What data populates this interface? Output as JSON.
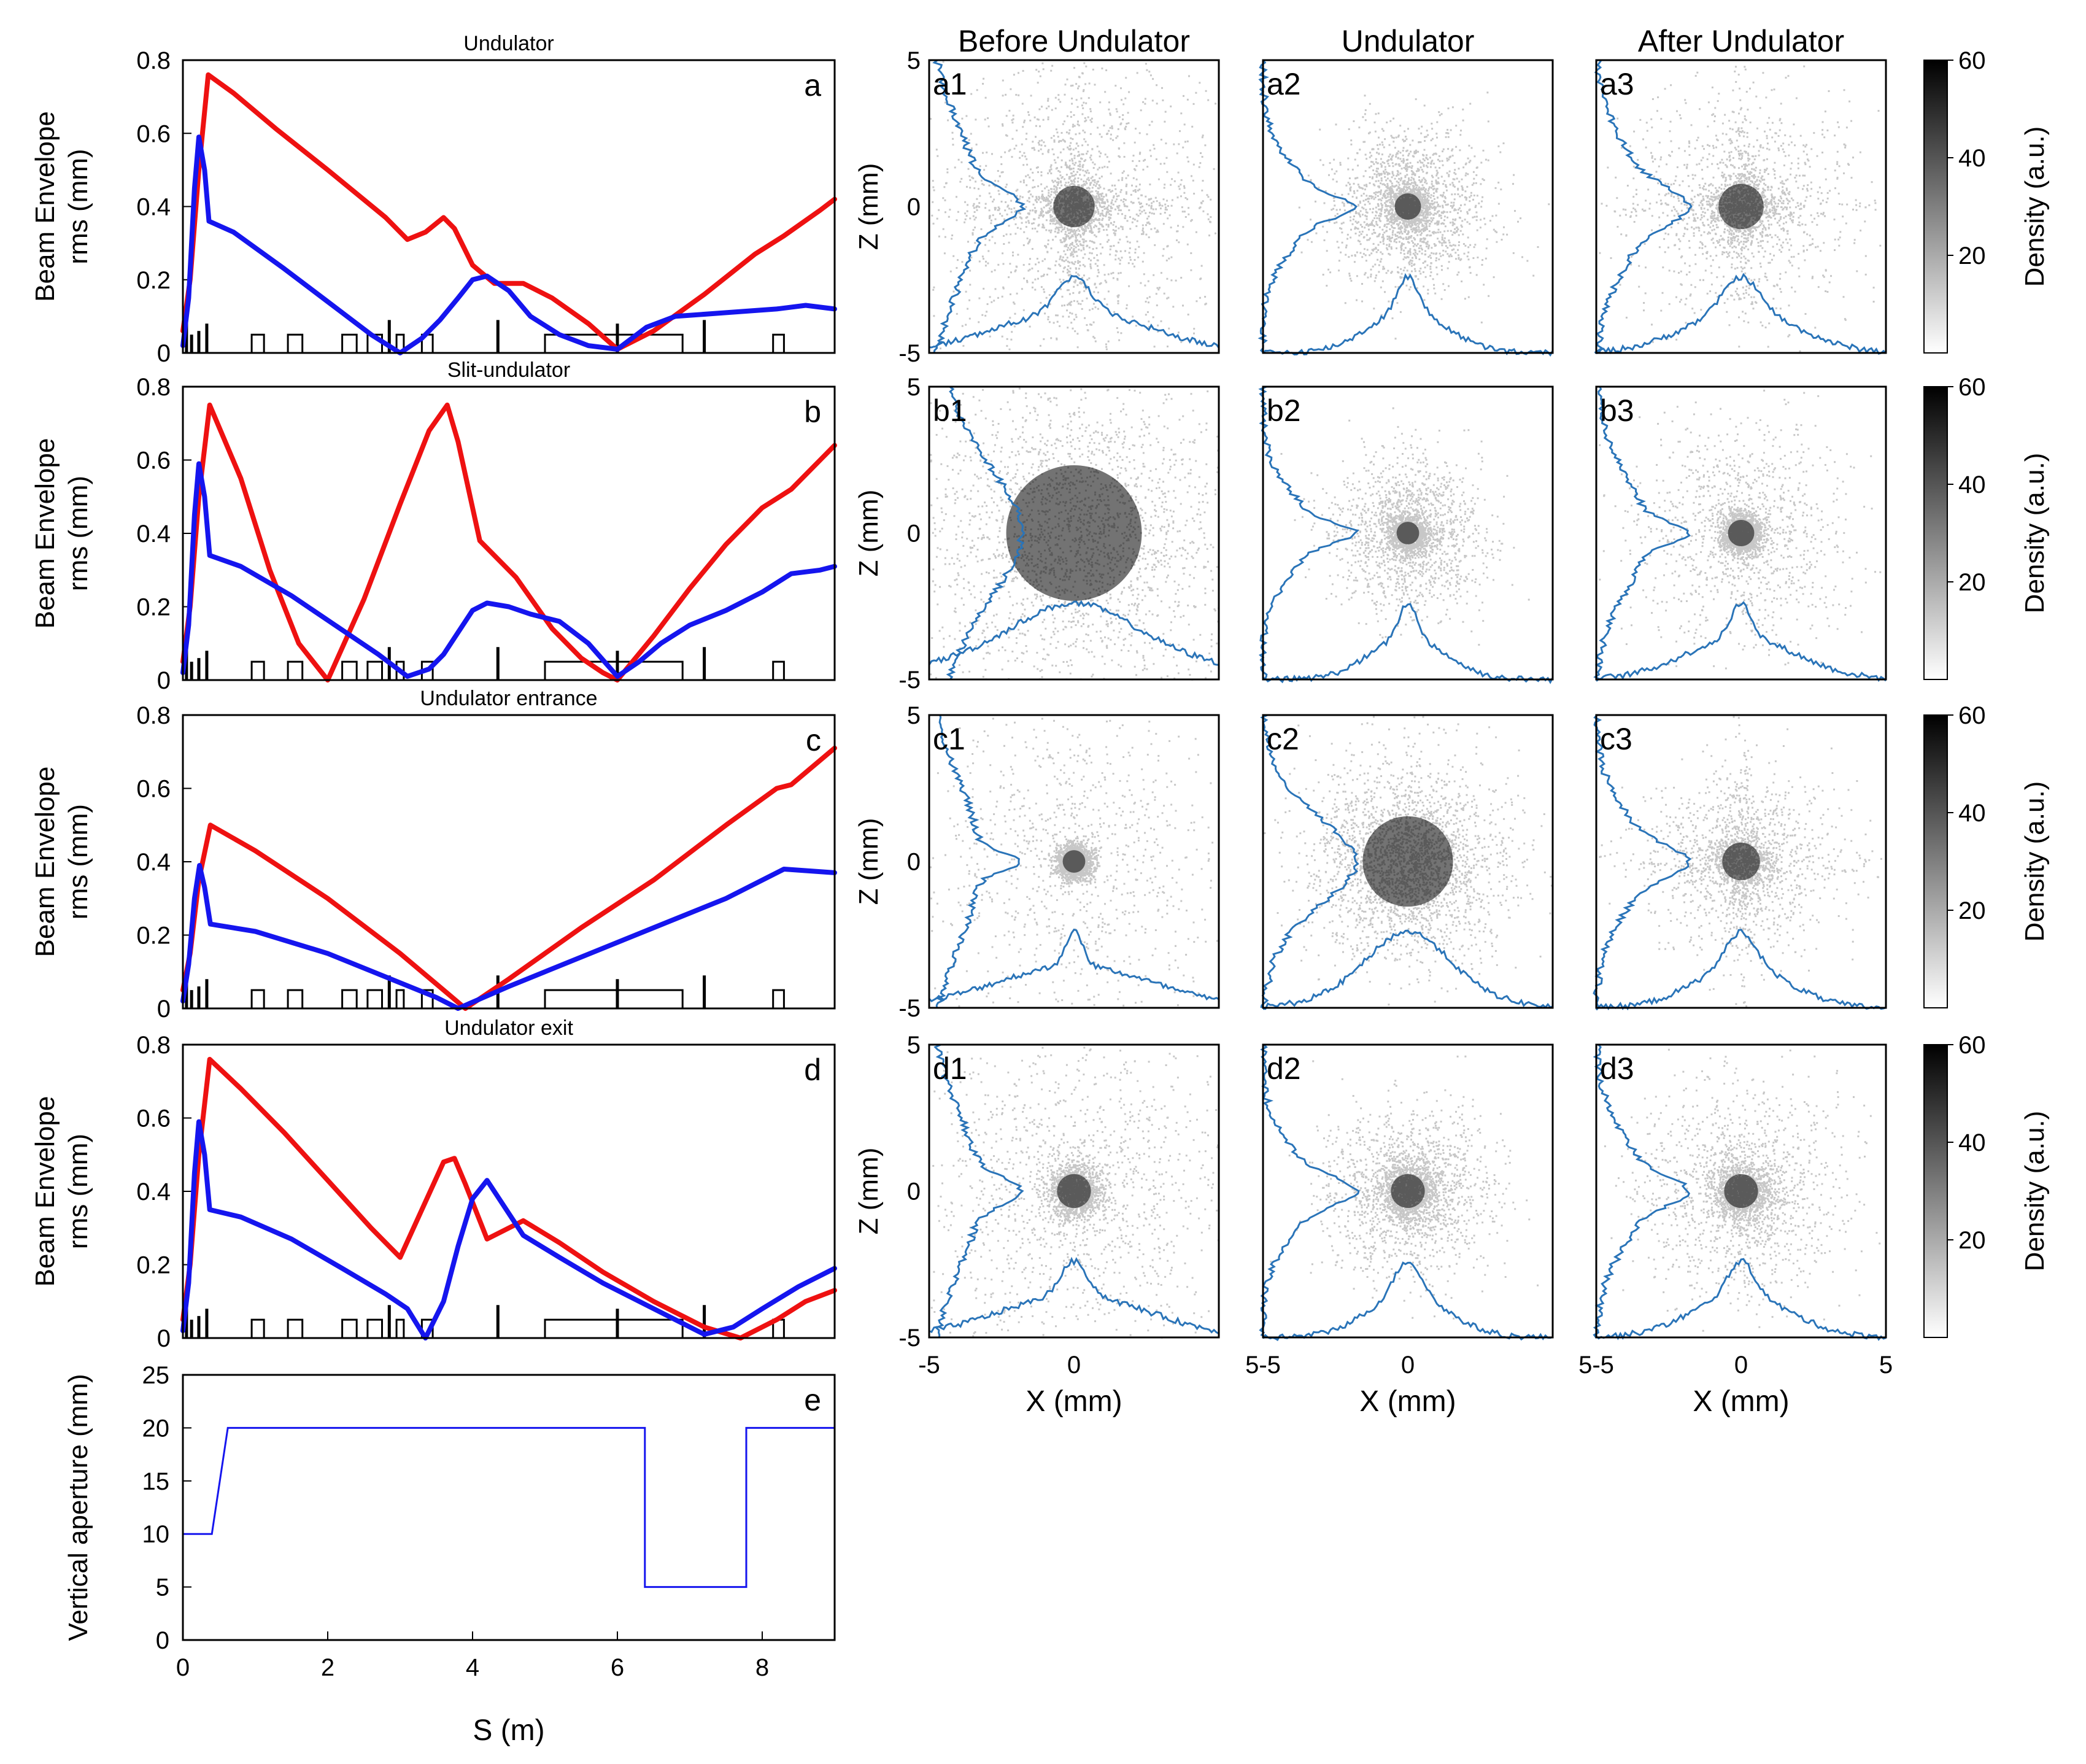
{
  "column_titles": [
    "Before Undulator",
    "Undulator",
    "After Undulator"
  ],
  "colorbar_label": "Density (a.u.)",
  "colorbar_ticks": [
    "20",
    "40",
    "60"
  ],
  "density_axes": {
    "xlabel": "X (mm)",
    "ylabel": "Z (mm)",
    "xticks": [
      "-5",
      "0",
      "5"
    ],
    "yticks": [
      "-5",
      "0",
      "5"
    ],
    "xticks_joined": [
      "-5",
      "0",
      "5-5",
      "0",
      "5-5",
      "0",
      "5"
    ]
  },
  "envelope_axes": {
    "ylabel_line1": "Beam Envelope",
    "ylabel_line2": "rms (mm)",
    "yticks": [
      "0",
      "0.2",
      "0.4",
      "0.6",
      "0.8"
    ]
  },
  "chart_data": [
    {
      "id": "a",
      "letter": "a",
      "type": "line",
      "title": "Undulator",
      "xlim": [
        0,
        9
      ],
      "ylim": [
        0,
        0.8
      ],
      "series": [
        {
          "name": "red",
          "color": "#ee1111",
          "x": [
            0,
            0.1,
            0.22,
            0.35,
            0.7,
            1.3,
            2,
            2.8,
            3.1,
            3.35,
            3.6,
            3.75,
            4.0,
            4.3,
            4.7,
            5.1,
            5.6,
            6.0,
            6.5,
            7.2,
            7.9,
            8.3,
            8.8,
            9.0
          ],
          "y": [
            0.06,
            0.2,
            0.5,
            0.76,
            0.71,
            0.61,
            0.5,
            0.37,
            0.31,
            0.33,
            0.37,
            0.34,
            0.24,
            0.19,
            0.19,
            0.15,
            0.08,
            0.01,
            0.06,
            0.16,
            0.27,
            0.32,
            0.39,
            0.42
          ]
        },
        {
          "name": "blue",
          "color": "#1515ee",
          "x": [
            0,
            0.08,
            0.16,
            0.22,
            0.3,
            0.36,
            0.7,
            1.4,
            2.0,
            2.6,
            3.0,
            3.3,
            3.55,
            3.8,
            4.0,
            4.2,
            4.5,
            4.8,
            5.2,
            5.6,
            6.0,
            6.4,
            6.8,
            7.5,
            8.2,
            8.6,
            9.0
          ],
          "y": [
            0.02,
            0.15,
            0.45,
            0.59,
            0.5,
            0.36,
            0.33,
            0.23,
            0.14,
            0.05,
            0.0,
            0.04,
            0.09,
            0.15,
            0.2,
            0.21,
            0.17,
            0.1,
            0.05,
            0.02,
            0.01,
            0.07,
            0.1,
            0.11,
            0.12,
            0.13,
            0.12
          ]
        }
      ]
    },
    {
      "id": "b",
      "letter": "b",
      "type": "line",
      "title": "Slit-undulator",
      "xlim": [
        0,
        9
      ],
      "ylim": [
        0,
        0.8
      ],
      "series": [
        {
          "name": "red",
          "color": "#ee1111",
          "x": [
            0,
            0.1,
            0.22,
            0.37,
            0.8,
            1.2,
            1.6,
            2.0,
            2.5,
            3.0,
            3.4,
            3.65,
            3.8,
            4.1,
            4.6,
            5.1,
            5.5,
            5.8,
            6.0,
            6.5,
            7.0,
            7.5,
            8.0,
            8.4,
            8.8,
            9.0
          ],
          "y": [
            0.05,
            0.2,
            0.5,
            0.75,
            0.55,
            0.3,
            0.1,
            0.0,
            0.22,
            0.48,
            0.68,
            0.75,
            0.65,
            0.38,
            0.28,
            0.14,
            0.06,
            0.02,
            0.0,
            0.12,
            0.25,
            0.37,
            0.47,
            0.52,
            0.6,
            0.64
          ]
        },
        {
          "name": "blue",
          "color": "#1515ee",
          "x": [
            0,
            0.08,
            0.16,
            0.22,
            0.3,
            0.37,
            0.8,
            1.5,
            2.1,
            2.7,
            3.1,
            3.4,
            3.6,
            3.8,
            4.0,
            4.2,
            4.5,
            4.8,
            5.2,
            5.6,
            6.0,
            6.3,
            6.6,
            7.0,
            7.5,
            8.0,
            8.4,
            8.8,
            9.0
          ],
          "y": [
            0.02,
            0.15,
            0.45,
            0.59,
            0.5,
            0.34,
            0.31,
            0.23,
            0.15,
            0.07,
            0.01,
            0.03,
            0.07,
            0.13,
            0.19,
            0.21,
            0.2,
            0.18,
            0.16,
            0.1,
            0.01,
            0.05,
            0.1,
            0.15,
            0.19,
            0.24,
            0.29,
            0.3,
            0.31
          ]
        }
      ]
    },
    {
      "id": "c",
      "letter": "c",
      "type": "line",
      "title": "Undulator entrance",
      "xlim": [
        0,
        9
      ],
      "ylim": [
        0,
        0.8
      ],
      "series": [
        {
          "name": "red",
          "color": "#ee1111",
          "x": [
            0,
            0.1,
            0.22,
            0.38,
            1.0,
            2.0,
            3.0,
            3.6,
            3.9,
            4.5,
            5.5,
            6.5,
            7.5,
            8.2,
            8.4,
            9.0
          ],
          "y": [
            0.05,
            0.15,
            0.35,
            0.5,
            0.43,
            0.3,
            0.15,
            0.05,
            0.0,
            0.08,
            0.22,
            0.35,
            0.5,
            0.6,
            0.61,
            0.71
          ]
        },
        {
          "name": "blue",
          "color": "#1515ee",
          "x": [
            0,
            0.08,
            0.16,
            0.23,
            0.3,
            0.38,
            1.0,
            2.0,
            3.0,
            3.5,
            3.8,
            4.5,
            5.5,
            6.5,
            7.5,
            8.3,
            9.0
          ],
          "y": [
            0.02,
            0.12,
            0.3,
            0.39,
            0.33,
            0.23,
            0.21,
            0.15,
            0.07,
            0.03,
            0.0,
            0.06,
            0.14,
            0.22,
            0.3,
            0.38,
            0.37
          ]
        }
      ]
    },
    {
      "id": "d",
      "letter": "d",
      "type": "line",
      "title": "Undulator exit",
      "xlim": [
        0,
        9
      ],
      "ylim": [
        0,
        0.8
      ],
      "series": [
        {
          "name": "red",
          "color": "#ee1111",
          "x": [
            0,
            0.1,
            0.22,
            0.37,
            0.8,
            1.4,
            2.0,
            2.6,
            3.0,
            3.3,
            3.6,
            3.75,
            3.9,
            4.2,
            4.7,
            5.2,
            5.8,
            6.5,
            7.2,
            7.7,
            8.2,
            8.6,
            9.0
          ],
          "y": [
            0.05,
            0.2,
            0.5,
            0.76,
            0.68,
            0.56,
            0.43,
            0.3,
            0.22,
            0.35,
            0.48,
            0.49,
            0.42,
            0.27,
            0.32,
            0.26,
            0.18,
            0.1,
            0.03,
            0.0,
            0.05,
            0.1,
            0.13
          ]
        },
        {
          "name": "blue",
          "color": "#1515ee",
          "x": [
            0,
            0.08,
            0.16,
            0.22,
            0.3,
            0.37,
            0.8,
            1.5,
            2.2,
            2.8,
            3.1,
            3.35,
            3.6,
            3.8,
            4.0,
            4.2,
            4.4,
            4.7,
            5.2,
            5.8,
            6.5,
            7.2,
            7.6,
            8.0,
            8.5,
            9.0
          ],
          "y": [
            0.02,
            0.15,
            0.45,
            0.59,
            0.5,
            0.35,
            0.33,
            0.27,
            0.19,
            0.12,
            0.08,
            0.0,
            0.1,
            0.25,
            0.38,
            0.43,
            0.37,
            0.28,
            0.22,
            0.15,
            0.08,
            0.01,
            0.03,
            0.08,
            0.14,
            0.19
          ]
        }
      ]
    },
    {
      "id": "e",
      "letter": "e",
      "type": "line",
      "xlabel": "S (m)",
      "ylabel": "Vertical aperture (mm)",
      "xlim": [
        0,
        9
      ],
      "ylim": [
        0,
        25
      ],
      "xticks": [
        "0",
        "2",
        "4",
        "6",
        "8"
      ],
      "yticks": [
        "0",
        "5",
        "10",
        "15",
        "20",
        "25"
      ],
      "series": [
        {
          "name": "aperture",
          "color": "#1515ee",
          "x": [
            0,
            0.4,
            0.62,
            6.38,
            6.38,
            7.78,
            7.78,
            9.0
          ],
          "y": [
            10,
            10,
            20,
            20,
            5,
            5,
            20,
            20
          ]
        }
      ]
    },
    {
      "type": "heatmap",
      "panels": [
        {
          "label": "a1",
          "row": 0,
          "col": 0,
          "core_sigma": 0.55,
          "halo_sigma": 2.6,
          "halo_weight": 0.55,
          "cross": true
        },
        {
          "label": "a2",
          "row": 0,
          "col": 1,
          "core_sigma": 0.35,
          "halo_sigma": 1.35,
          "halo_weight": 0.6,
          "cross": false
        },
        {
          "label": "a3",
          "row": 0,
          "col": 2,
          "core_sigma": 0.6,
          "halo_sigma": 1.9,
          "halo_weight": 0.45,
          "cross": true
        },
        {
          "label": "b1",
          "row": 1,
          "col": 0,
          "core_sigma": 1.8,
          "halo_sigma": 3.6,
          "halo_weight": 0.7,
          "cross": false
        },
        {
          "label": "b2",
          "row": 1,
          "col": 1,
          "core_sigma": 0.3,
          "halo_sigma": 1.3,
          "halo_weight": 0.55,
          "cross": false
        },
        {
          "label": "b3",
          "row": 1,
          "col": 2,
          "core_sigma": 0.35,
          "halo_sigma": 1.9,
          "halo_weight": 0.4,
          "cross": false
        },
        {
          "label": "c1",
          "row": 2,
          "col": 0,
          "core_sigma": 0.3,
          "halo_sigma": 2.7,
          "halo_weight": 0.35,
          "cross": false
        },
        {
          "label": "c2",
          "row": 2,
          "col": 1,
          "core_sigma": 1.2,
          "halo_sigma": 1.9,
          "halo_weight": 0.5,
          "cross": false
        },
        {
          "label": "c3",
          "row": 2,
          "col": 2,
          "core_sigma": 0.5,
          "halo_sigma": 1.6,
          "halo_weight": 0.5,
          "cross": true
        },
        {
          "label": "d1",
          "row": 3,
          "col": 0,
          "core_sigma": 0.45,
          "halo_sigma": 2.6,
          "halo_weight": 0.45,
          "cross": false
        },
        {
          "label": "d2",
          "row": 3,
          "col": 1,
          "core_sigma": 0.45,
          "halo_sigma": 1.4,
          "halo_weight": 0.55,
          "cross": false
        },
        {
          "label": "d3",
          "row": 3,
          "col": 2,
          "core_sigma": 0.45,
          "halo_sigma": 1.7,
          "halo_weight": 0.5,
          "cross": false
        }
      ]
    }
  ]
}
